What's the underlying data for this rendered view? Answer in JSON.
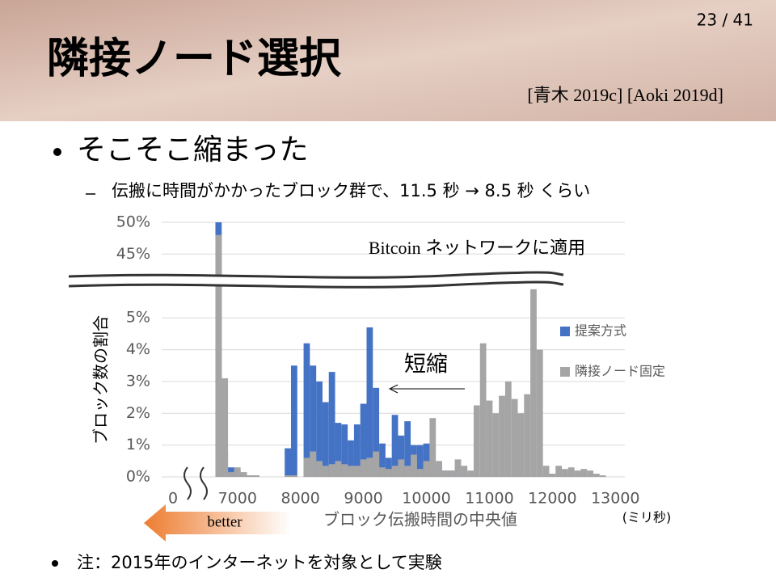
{
  "slide": {
    "page_number": "23 / 41",
    "title": "隣接ノード選択",
    "citation": "[青木 2019c] [Aoki 2019d]",
    "bullets": [
      "そこそこ縮まった"
    ],
    "sub_bullets": [
      "伝搬に時間がかかったブロック群で、11.5 秒 → 8.5 秒 くらい"
    ],
    "note": "注：2015年のインターネットを対象として実験"
  },
  "chart_data": {
    "type": "bar",
    "y_label": "ブロック数の割合",
    "x_label": "ブロック伝搬時間の中央値",
    "x_unit": "(ミリ秒)",
    "annotations": [
      "Bitcoin ネットワークに適用",
      "短縮",
      "better"
    ],
    "x": [
      6700,
      6800,
      6900,
      7000,
      7100,
      7200,
      7300,
      7400,
      7500,
      7600,
      7700,
      7800,
      7900,
      8000,
      8100,
      8200,
      8300,
      8400,
      8500,
      8600,
      8700,
      8800,
      8900,
      9000,
      9100,
      9200,
      9300,
      9400,
      9500,
      9600,
      9700,
      9800,
      9900,
      10000,
      10100,
      10200,
      10300,
      10400,
      10500,
      10600,
      10700,
      10800,
      10900,
      11000,
      11100,
      11200,
      11300,
      11400,
      11500,
      11600,
      11700,
      11800,
      11900,
      12000,
      12100,
      12200,
      12300,
      12400,
      12500,
      12600,
      12700,
      12800
    ],
    "series": [
      {
        "name": "提案方式",
        "color": "#4472c4",
        "values": [
          50,
          0.8,
          0.3,
          0.2,
          0.1,
          0.05,
          0.05,
          0,
          0,
          0,
          0,
          0.9,
          3.5,
          0,
          4.2,
          3.5,
          3.0,
          2.35,
          3.3,
          1.7,
          1.65,
          1.15,
          1.65,
          2.3,
          4.7,
          2.8,
          1.05,
          0.6,
          1.95,
          1.3,
          1.75,
          1.0,
          1.0,
          1.05,
          0.5,
          0.3,
          0.2,
          0.2,
          0.15,
          0.1,
          0.05,
          0,
          0,
          0,
          0,
          0,
          0,
          0,
          0,
          0,
          0,
          0,
          0,
          0,
          0,
          0,
          0,
          0,
          0,
          0,
          0,
          0
        ]
      },
      {
        "name": "隣接ノード固定",
        "color": "#a5a5a5",
        "values": [
          48,
          3.1,
          0.15,
          0.3,
          0.15,
          0.05,
          0.05,
          0,
          0,
          0,
          0,
          0.05,
          0.05,
          0,
          0.6,
          0.8,
          0.5,
          0.35,
          0.4,
          0.5,
          0.4,
          0.35,
          0.35,
          0.55,
          0.6,
          0.8,
          0.3,
          0.25,
          0.35,
          0.55,
          0.35,
          0.7,
          0.25,
          0.5,
          1.85,
          0.5,
          0.2,
          0.2,
          0.55,
          0.35,
          0.2,
          2.25,
          4.2,
          2.4,
          2.0,
          2.55,
          3.0,
          2.45,
          2.0,
          2.6,
          5.9,
          4.0,
          0.35,
          0.1,
          0.35,
          0.25,
          0.3,
          0.2,
          0.25,
          0.2,
          0.1,
          0.05
        ]
      }
    ],
    "bin_width": 100,
    "xlim": [
      0,
      13150
    ],
    "x_break": [
      0,
      6400
    ],
    "xticks": [
      0,
      7000,
      8000,
      9000,
      10000,
      11000,
      12000,
      13000
    ],
    "ylim": [
      0,
      50
    ],
    "y_break": [
      6.2,
      43
    ],
    "yticks": [
      {
        "value": 0,
        "label": "0%"
      },
      {
        "value": 1,
        "label": "1%"
      },
      {
        "value": 2,
        "label": "2%"
      },
      {
        "value": 3,
        "label": "3%"
      },
      {
        "value": 4,
        "label": "4%"
      },
      {
        "value": 5,
        "label": "5%"
      },
      {
        "value": 45,
        "label": "45%"
      },
      {
        "value": 50,
        "label": "50%"
      }
    ],
    "grid": true,
    "legend": "right"
  }
}
